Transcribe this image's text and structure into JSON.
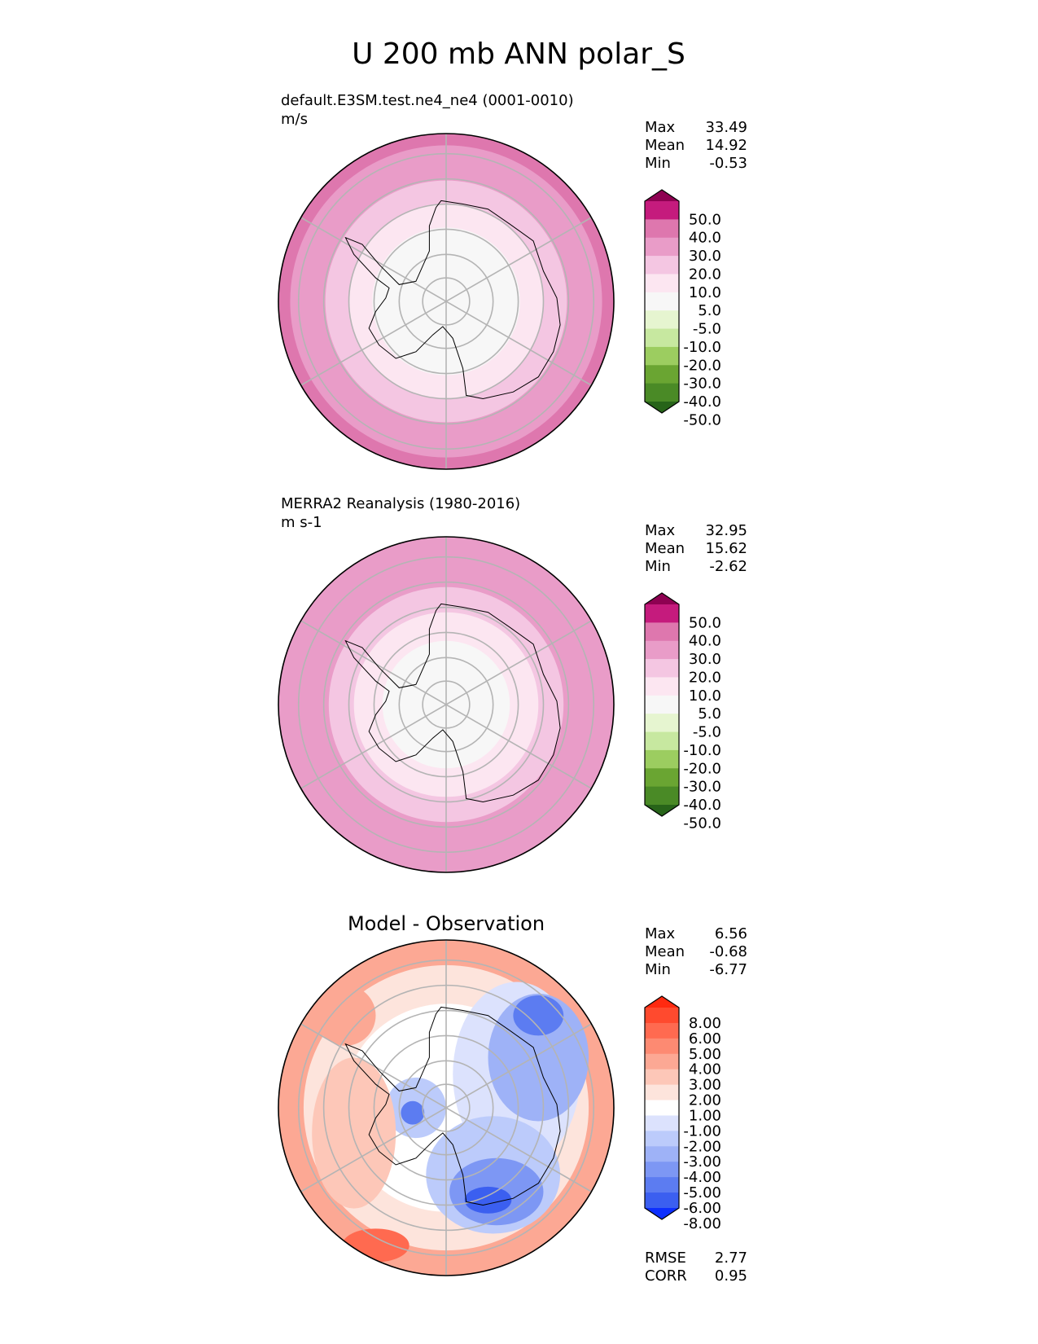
{
  "figure": {
    "title": "U 200 mb ANN polar_S"
  },
  "chart_data": [
    {
      "type": "heatmap",
      "projection": "south-polar-stereographic",
      "title": "",
      "subtitle": "default.E3SM.test.ne4_ne4 (0001-0010)",
      "units": "m/s",
      "stats": {
        "max": {
          "label": "Max",
          "value": "33.49"
        },
        "mean": {
          "label": "Mean",
          "value": "14.92"
        },
        "min": {
          "label": "Min",
          "value": "-0.53"
        }
      },
      "colorbar": {
        "ticks": [
          "50.0",
          "40.0",
          "30.0",
          "20.0",
          "10.0",
          "5.0",
          "-5.0",
          "-10.0",
          "-20.0",
          "-30.0",
          "-40.0",
          "-50.0"
        ],
        "colors": [
          "#8e0152",
          "#c51b7d",
          "#de77ae",
          "#e99cc8",
          "#f4c6e2",
          "#fce6f1",
          "#f7f7f7",
          "#e6f5d0",
          "#c7e8a0",
          "#9ccd60",
          "#6aa532",
          "#4a8a26",
          "#276419"
        ]
      },
      "rings": [
        {
          "r": 1.0,
          "color": "#de77ae"
        },
        {
          "r": 0.93,
          "color": "#e99cc8"
        },
        {
          "r": 0.72,
          "color": "#f4c6e2"
        },
        {
          "r": 0.58,
          "color": "#fce6f1"
        },
        {
          "r": 0.44,
          "color": "#f7f7f7"
        }
      ]
    },
    {
      "type": "heatmap",
      "projection": "south-polar-stereographic",
      "title": "",
      "subtitle": "MERRA2 Reanalysis (1980-2016)",
      "units": "m s-1",
      "stats": {
        "max": {
          "label": "Max",
          "value": "32.95"
        },
        "mean": {
          "label": "Mean",
          "value": "15.62"
        },
        "min": {
          "label": "Min",
          "value": "-2.62"
        }
      },
      "colorbar": {
        "ticks": [
          "50.0",
          "40.0",
          "30.0",
          "20.0",
          "10.0",
          "5.0",
          "-5.0",
          "-10.0",
          "-20.0",
          "-30.0",
          "-40.0",
          "-50.0"
        ],
        "colors": [
          "#8e0152",
          "#c51b7d",
          "#de77ae",
          "#e99cc8",
          "#f4c6e2",
          "#fce6f1",
          "#f7f7f7",
          "#e6f5d0",
          "#c7e8a0",
          "#9ccd60",
          "#6aa532",
          "#4a8a26",
          "#276419"
        ]
      },
      "rings": [
        {
          "r": 1.0,
          "color": "#e99cc8"
        },
        {
          "r": 0.7,
          "color": "#f4c6e2"
        },
        {
          "r": 0.55,
          "color": "#fce6f1"
        },
        {
          "r": 0.38,
          "color": "#f7f7f7"
        }
      ]
    },
    {
      "type": "heatmap",
      "projection": "south-polar-stereographic",
      "title": "Model - Observation",
      "subtitle": "",
      "units": "",
      "stats": {
        "max": {
          "label": "Max",
          "value": "6.56"
        },
        "mean": {
          "label": "Mean",
          "value": "-0.68"
        },
        "min": {
          "label": "Min",
          "value": "-6.77"
        }
      },
      "colorbar": {
        "ticks": [
          "8.00",
          "6.00",
          "5.00",
          "4.00",
          "3.00",
          "2.00",
          "1.00",
          "-1.00",
          "-2.00",
          "-3.00",
          "-4.00",
          "-5.00",
          "-6.00",
          "-8.00"
        ],
        "colors": [
          "#ff2a10",
          "#ff4a2e",
          "#ff6a50",
          "#fd8a72",
          "#fca894",
          "#fdc7b8",
          "#fde4dc",
          "#ffffff",
          "#dce2fd",
          "#bccbfb",
          "#9eb2f7",
          "#7d97f4",
          "#5c7cf1",
          "#3b5ff0",
          "#0d2ffe"
        ]
      },
      "rings": [
        {
          "r": 1.0,
          "color": "#fca894"
        },
        {
          "r": 0.85,
          "color": "#fde4dc"
        },
        {
          "r": 0.62,
          "color": "#ffffff"
        }
      ],
      "blobs": [
        {
          "cx": 0.42,
          "cy": -0.2,
          "rx": 0.38,
          "ry": 0.55,
          "color": "#dce2fd"
        },
        {
          "cx": 0.55,
          "cy": -0.3,
          "rx": 0.3,
          "ry": 0.38,
          "color": "#9eb2f7"
        },
        {
          "cx": 0.55,
          "cy": -0.55,
          "rx": 0.15,
          "ry": 0.12,
          "color": "#5c7cf1"
        },
        {
          "cx": 0.28,
          "cy": 0.4,
          "rx": 0.4,
          "ry": 0.35,
          "color": "#bccbfb"
        },
        {
          "cx": 0.3,
          "cy": 0.5,
          "rx": 0.28,
          "ry": 0.2,
          "color": "#7d97f4"
        },
        {
          "cx": 0.25,
          "cy": 0.55,
          "rx": 0.14,
          "ry": 0.08,
          "color": "#3b5ff0"
        },
        {
          "cx": -0.18,
          "cy": 0.0,
          "rx": 0.18,
          "ry": 0.18,
          "color": "#bccbfb"
        },
        {
          "cx": -0.2,
          "cy": 0.03,
          "rx": 0.07,
          "ry": 0.07,
          "color": "#5c7cf1"
        },
        {
          "cx": -0.55,
          "cy": 0.15,
          "rx": 0.25,
          "ry": 0.45,
          "color": "#fdc7b8"
        },
        {
          "cx": -0.6,
          "cy": -0.55,
          "rx": 0.18,
          "ry": 0.18,
          "color": "#fca894"
        },
        {
          "cx": -0.42,
          "cy": 0.82,
          "rx": 0.2,
          "ry": 0.1,
          "color": "#ff6a50"
        }
      ],
      "extra_stats": {
        "rmse": {
          "label": "RMSE",
          "value": "2.77"
        },
        "corr": {
          "label": "CORR",
          "value": "0.95"
        }
      }
    }
  ]
}
